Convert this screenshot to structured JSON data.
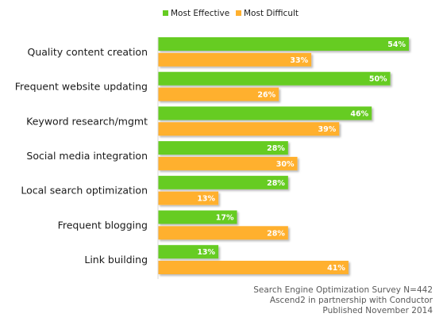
{
  "chart_data": {
    "type": "bar",
    "orientation": "horizontal",
    "categories": [
      "Quality content creation",
      "Frequent website updating",
      "Keyword research/mgmt",
      "Social media integration",
      "Local search optimization",
      "Frequent blogging",
      "Link building"
    ],
    "series": [
      {
        "name": "Most Effective",
        "values": [
          54,
          50,
          46,
          28,
          28,
          17,
          13
        ],
        "color": "#66cc22"
      },
      {
        "name": "Most Difficult",
        "values": [
          33,
          26,
          39,
          30,
          13,
          28,
          41
        ],
        "color": "#ffb02e"
      }
    ],
    "value_suffix": "%",
    "xlim": [
      0,
      54
    ],
    "legend_position": "top",
    "grid": false
  },
  "source": {
    "lines": [
      "Search Engine Optimization Survey N=442",
      "Ascend2 in partnership with Conductor",
      "Published November 2014"
    ]
  }
}
